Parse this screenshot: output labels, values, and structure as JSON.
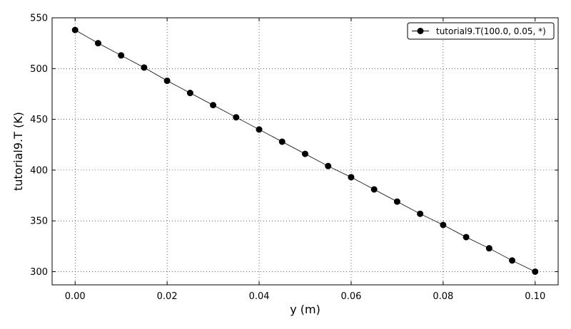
{
  "chart_data": {
    "type": "line",
    "xlabel": "y (m)",
    "ylabel": "tutorial9.T (K)",
    "xlim": [
      -0.005,
      0.105
    ],
    "ylim": [
      287,
      550
    ],
    "xticks": [
      "0.00",
      "0.02",
      "0.04",
      "0.06",
      "0.08",
      "0.10"
    ],
    "yticks": [
      "300",
      "350",
      "400",
      "450",
      "500",
      "550"
    ],
    "grid": true,
    "legend_position": "top-right",
    "series": [
      {
        "name": "tutorial9.T(100.0, 0.05, *)",
        "color": "#000000",
        "marker": "circle",
        "x": [
          0.0,
          0.005,
          0.01,
          0.015,
          0.02,
          0.025,
          0.03,
          0.035,
          0.04,
          0.045,
          0.05,
          0.055,
          0.06,
          0.065,
          0.07,
          0.075,
          0.08,
          0.085,
          0.09,
          0.095,
          0.1
        ],
        "y": [
          538,
          525,
          513,
          501,
          488,
          476,
          464,
          452,
          440,
          428,
          416,
          404,
          393,
          381,
          369,
          357,
          346,
          334,
          323,
          311,
          300
        ]
      }
    ]
  }
}
